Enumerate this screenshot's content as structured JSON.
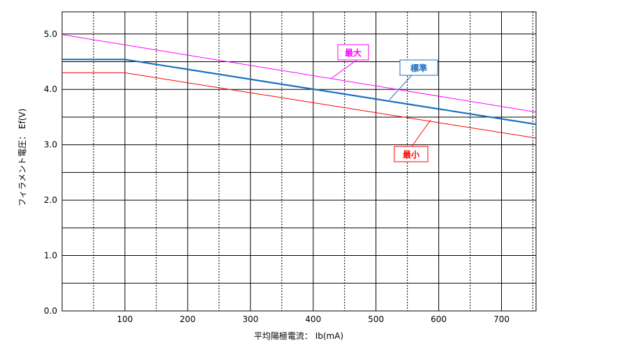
{
  "chart_data": {
    "type": "line",
    "title": "",
    "xlabel": "平均陽極電流： Ib(mA)",
    "ylabel": "フィラメント電圧： Ef(V)",
    "xlim": [
      0,
      755
    ],
    "ylim": [
      0,
      5.4
    ],
    "x_ticks": [
      100,
      200,
      300,
      400,
      500,
      600,
      700
    ],
    "y_ticks": [
      0.0,
      1.0,
      2.0,
      3.0,
      4.0,
      5.0
    ],
    "x_tick_labels": [
      "100",
      "200",
      "300",
      "400",
      "500",
      "600",
      "700"
    ],
    "y_tick_labels": [
      "0.0",
      "1.0",
      "2.0",
      "3.0",
      "4.0",
      "5.0"
    ],
    "grid": true,
    "series": [
      {
        "name": "最大",
        "color": "#ff00ff",
        "x": [
          0,
          755
        ],
        "y": [
          4.99,
          3.59
        ]
      },
      {
        "name": "標準",
        "color": "#1a6fbf",
        "x": [
          0,
          100,
          755
        ],
        "y": [
          4.54,
          4.54,
          3.37
        ]
      },
      {
        "name": "最小",
        "color": "#ff0000",
        "x": [
          0,
          100,
          755
        ],
        "y": [
          4.3,
          4.3,
          3.12
        ]
      }
    ]
  }
}
